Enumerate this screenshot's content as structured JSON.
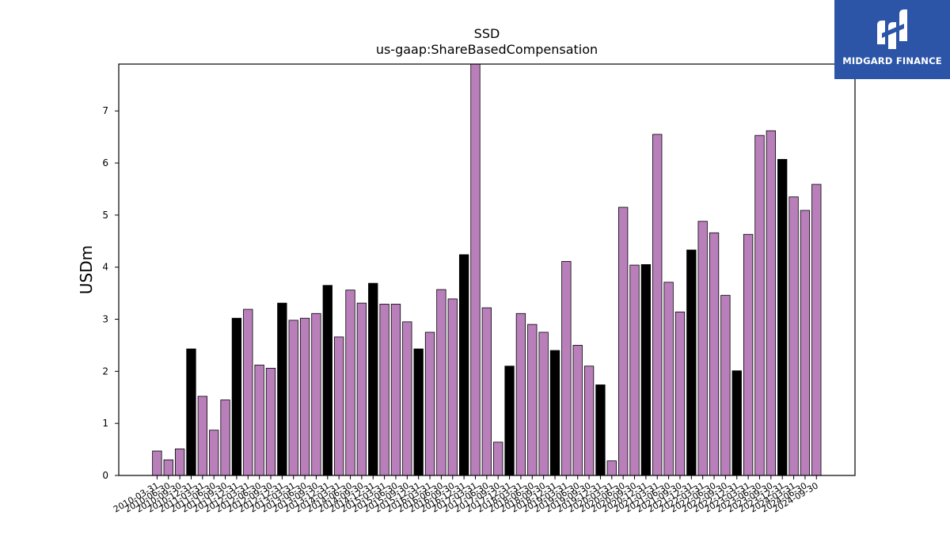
{
  "chart_data": {
    "type": "bar",
    "title": "SSD",
    "subtitle": "us-gaap:ShareBasedCompensation",
    "ylabel": "USDm",
    "xlabel": "",
    "ylim": [
      0,
      7.9
    ],
    "yticks": [
      0,
      1,
      2,
      3,
      4,
      5,
      6,
      7
    ],
    "grid": false,
    "colors": {
      "quarterly": "#b97fbb",
      "annual": "#000000",
      "edge": "#000000"
    },
    "categories": [
      "2010-03-31",
      "2010-06-30",
      "2010-09-30",
      "2010-12-31",
      "2011-03-31",
      "2011-06-30",
      "2011-09-30",
      "2011-12-31",
      "2012-03-31",
      "2012-06-30",
      "2012-09-30",
      "2012-12-31",
      "2013-03-31",
      "2013-06-30",
      "2013-09-30",
      "2013-12-31",
      "2014-03-31",
      "2014-06-30",
      "2014-09-30",
      "2014-12-31",
      "2015-03-31",
      "2015-06-30",
      "2015-09-30",
      "2015-12-31",
      "2016-03-31",
      "2016-06-30",
      "2016-09-30",
      "2016-12-31",
      "2017-03-31",
      "2017-06-30",
      "2017-09-30",
      "2017-12-31",
      "2018-03-31",
      "2018-06-30",
      "2018-09-30",
      "2018-12-31",
      "2019-03-31",
      "2019-06-30",
      "2019-09-30",
      "2019-12-31",
      "2020-03-31",
      "2020-06-30",
      "2020-09-30",
      "2020-12-31",
      "2021-03-31",
      "2021-06-30",
      "2021-09-30",
      "2021-12-31",
      "2022-03-31",
      "2022-06-30",
      "2022-09-30",
      "2022-12-31",
      "2023-03-31",
      "2023-06-30",
      "2023-09-30",
      "2023-12-31",
      "2024-03-31",
      "2024-06-30",
      "2024-09-30"
    ],
    "values": [
      0.47,
      0.3,
      0.51,
      2.43,
      1.52,
      0.87,
      1.45,
      3.02,
      3.19,
      2.12,
      2.06,
      3.31,
      2.98,
      3.02,
      3.11,
      3.65,
      2.66,
      3.56,
      3.31,
      3.69,
      3.29,
      3.29,
      2.95,
      2.43,
      2.75,
      3.57,
      3.39,
      4.24,
      7.95,
      3.22,
      0.64,
      2.1,
      3.11,
      2.9,
      2.75,
      2.4,
      4.11,
      2.5,
      2.1,
      1.74,
      0.28,
      5.15,
      4.04,
      4.05,
      6.55,
      3.71,
      3.14,
      4.33,
      4.88,
      4.66,
      3.46,
      2.01,
      4.63,
      6.53,
      6.62,
      6.07,
      5.35,
      5.09,
      5.59
    ],
    "annual_flags": [
      0,
      0,
      0,
      1,
      0,
      0,
      0,
      1,
      0,
      0,
      0,
      1,
      0,
      0,
      0,
      1,
      0,
      0,
      0,
      1,
      0,
      0,
      0,
      1,
      0,
      0,
      0,
      1,
      0,
      0,
      0,
      1,
      0,
      0,
      0,
      1,
      0,
      0,
      0,
      1,
      0,
      0,
      0,
      1,
      0,
      0,
      0,
      1,
      0,
      0,
      0,
      1,
      0,
      0,
      0,
      1,
      0,
      0,
      0
    ]
  },
  "logo": {
    "text": "MIDGARD FINANCE"
  }
}
